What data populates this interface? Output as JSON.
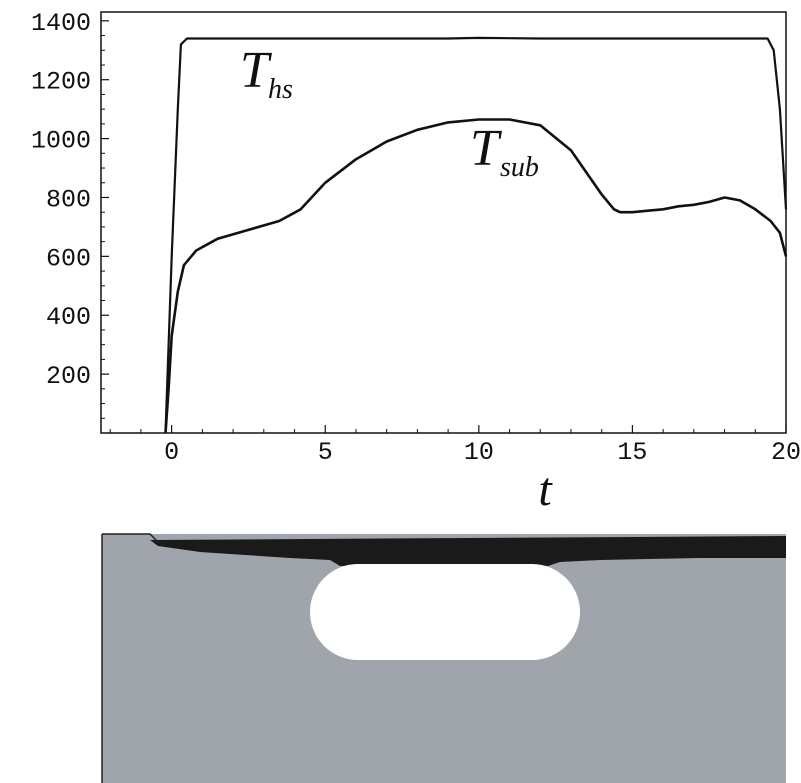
{
  "chart_data": {
    "type": "line",
    "xlabel": "t",
    "ylabel": "",
    "xlim": [
      -2.3,
      20
    ],
    "ylim": [
      0,
      1430
    ],
    "x_ticks": [
      0,
      5,
      10,
      15,
      20
    ],
    "y_ticks": [
      200,
      400,
      600,
      800,
      1000,
      1200,
      1400
    ],
    "x_tick_labels": [
      "0",
      "5",
      "10",
      "15",
      "20"
    ],
    "y_tick_labels": [
      "200",
      "400",
      "600",
      "800",
      "1000",
      "1200",
      "1400"
    ],
    "grid": false,
    "series": [
      {
        "name": "T_hs",
        "label_main": "T",
        "label_sub": "hs",
        "color": "#111111",
        "x": [
          -0.2,
          0.0,
          0.2,
          0.3,
          0.5,
          3,
          6,
          9,
          10,
          12,
          15,
          18,
          19,
          19.4,
          19.6,
          19.8,
          20.0
        ],
        "y": [
          0,
          600,
          1100,
          1320,
          1340,
          1340,
          1340,
          1340,
          1342,
          1340,
          1340,
          1340,
          1340,
          1340,
          1300,
          1100,
          760
        ]
      },
      {
        "name": "T_sub",
        "label_main": "T",
        "label_sub": "sub",
        "color": "#111111",
        "x": [
          -0.2,
          -0.1,
          0.0,
          0.2,
          0.4,
          0.8,
          1.5,
          2.5,
          3.5,
          4.2,
          5.0,
          6.0,
          7.0,
          8.0,
          9.0,
          10.0,
          11.0,
          12.0,
          13.0,
          14.0,
          14.4,
          14.6,
          15.0,
          15.5,
          16.0,
          16.5,
          17.0,
          17.5,
          18.0,
          18.5,
          19.0,
          19.5,
          19.8,
          20.0
        ],
        "y": [
          0,
          150,
          330,
          480,
          570,
          620,
          660,
          690,
          720,
          760,
          850,
          930,
          990,
          1030,
          1055,
          1065,
          1065,
          1045,
          960,
          810,
          760,
          750,
          750,
          755,
          760,
          770,
          775,
          785,
          800,
          790,
          760,
          720,
          680,
          600
        ]
      }
    ]
  },
  "substrate_image": {
    "colors": {
      "substrate": "#a0a5ac",
      "top_layer": "#1a1a1a",
      "void": "#ffffff",
      "border": "#222222"
    }
  }
}
